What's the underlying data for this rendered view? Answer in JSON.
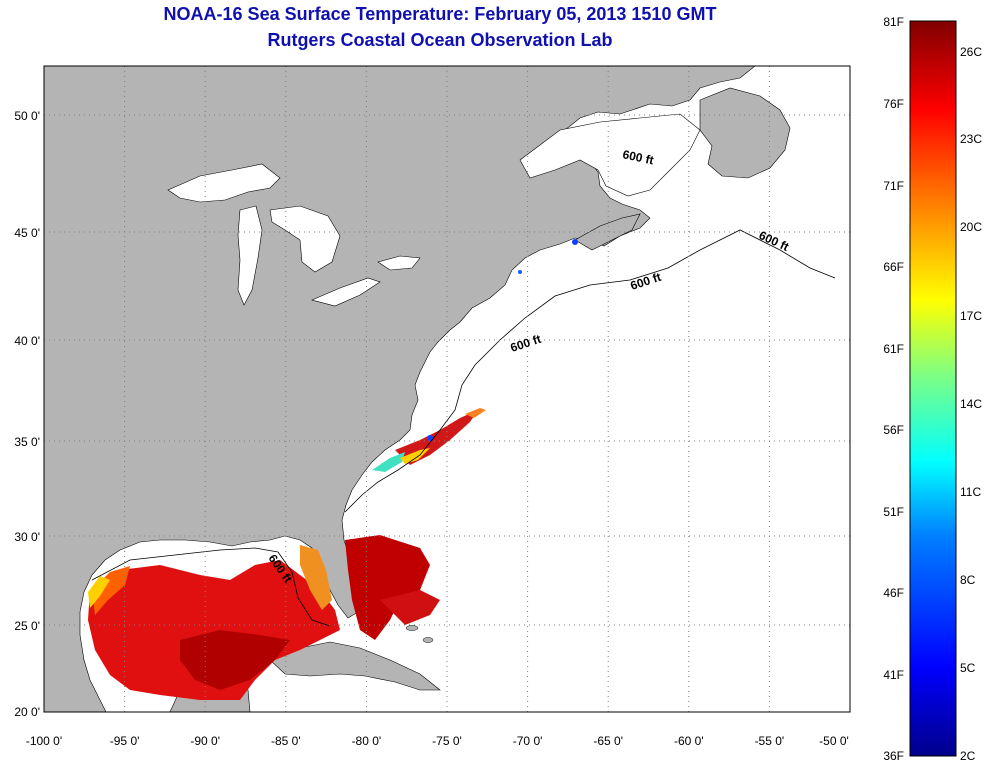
{
  "title": "NOAA-16 Sea Surface Temperature:  February 05, 2013 1510 GMT",
  "subtitle": "Rutgers Coastal Ocean Observation Lab",
  "map": {
    "lon_range": [
      -100,
      -50
    ],
    "lat_range": [
      20,
      52.5
    ],
    "lon_ticks": [
      "-100 0'",
      "-95 0'",
      "-90 0'",
      "-85 0'",
      "-80 0'",
      "-75 0'",
      "-70 0'",
      "-65 0'",
      "-60 0'",
      "-55 0'",
      "-50 0'"
    ],
    "lat_ticks": [
      "20 0'",
      "25 0'",
      "30 0'",
      "35 0'",
      "40 0'",
      "45 0'",
      "50 0'"
    ],
    "grid": true,
    "land_color": "#b4b4b4",
    "contour_labels": [
      "600 ft",
      "600 ft",
      "600 ft",
      "600 ft",
      "600 ft"
    ]
  },
  "colorbar": {
    "f_labels": [
      "81F",
      "76F",
      "71F",
      "66F",
      "61F",
      "56F",
      "51F",
      "46F",
      "41F",
      "36F"
    ],
    "c_labels": [
      "26C",
      "23C",
      "20C",
      "17C",
      "14C",
      "11C",
      "8C",
      "5C",
      "2C"
    ],
    "colors": [
      "#00008b",
      "#0000ff",
      "#0080ff",
      "#00ffff",
      "#80ff80",
      "#ffff00",
      "#ff8000",
      "#ff0000",
      "#800000"
    ]
  }
}
